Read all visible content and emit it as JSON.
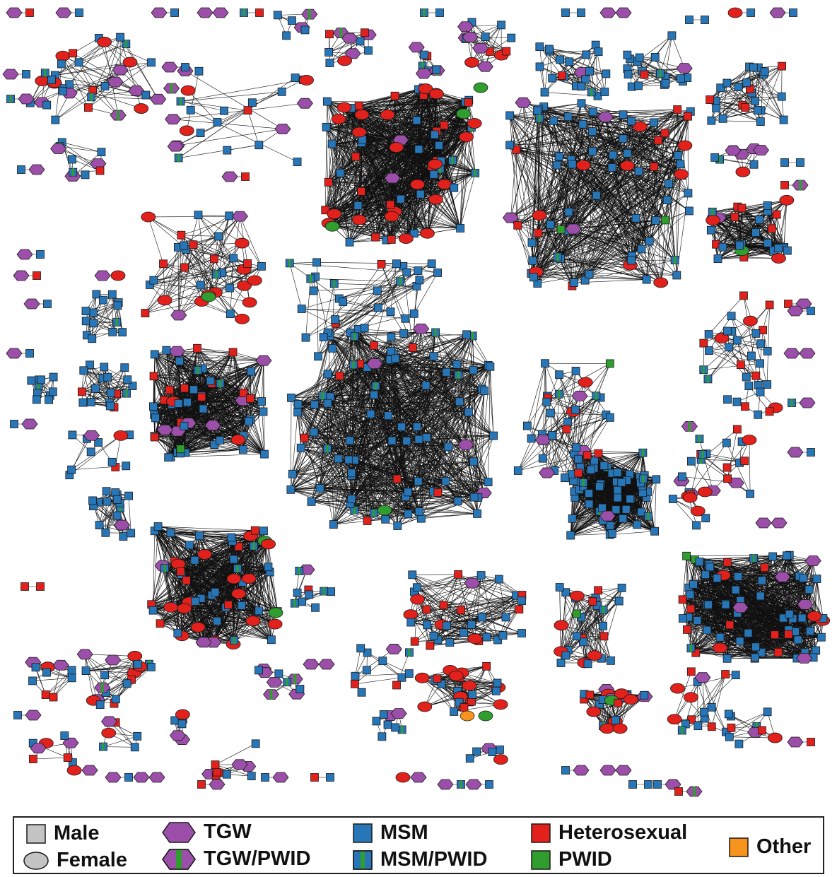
{
  "colors": {
    "msm": "#2776b8",
    "heterosexual": "#e2211c",
    "tgw": "#9b4fa8",
    "pwid": "#2f9e2f",
    "other": "#f7941d",
    "neutral": "#c4c4c4",
    "edge": "#111111",
    "outline": "#1a1a1a"
  },
  "legend": {
    "male": "Male",
    "female": "Female",
    "tgw": "TGW",
    "tgw_pwid": "TGW/PWID",
    "msm": "MSM",
    "msm_pwid": "MSM/PWID",
    "heterosexual": "Heterosexual",
    "pwid": "PWID",
    "other": "Other"
  }
}
